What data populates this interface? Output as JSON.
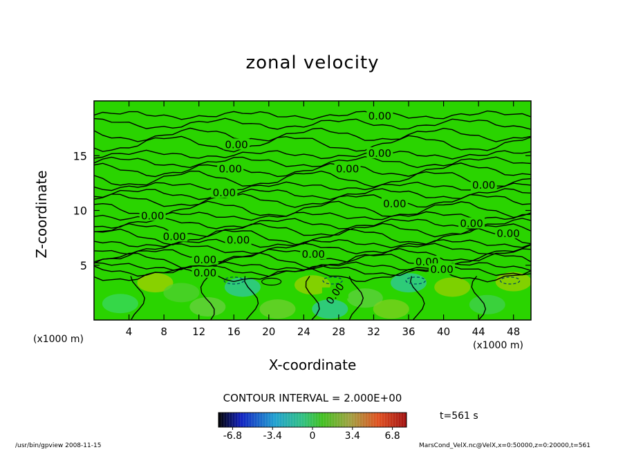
{
  "chart_data": {
    "type": "contour",
    "title": "zonal velocity",
    "xlabel": "X-coordinate",
    "ylabel": "Z-coordinate",
    "x_unit_left": "(x1000 m)",
    "x_unit_right": "(x1000 m)",
    "xlim": [
      0,
      50
    ],
    "ylim": [
      0,
      20
    ],
    "x_ticks": [
      "4",
      "8",
      "12",
      "16",
      "20",
      "24",
      "28",
      "32",
      "36",
      "40",
      "44",
      "48"
    ],
    "x_tick_values": [
      4,
      8,
      12,
      16,
      20,
      24,
      28,
      32,
      36,
      40,
      44,
      48
    ],
    "y_ticks": [
      "5",
      "10",
      "15"
    ],
    "y_tick_values": [
      5,
      10,
      15
    ],
    "contour_label": "0.00",
    "contour_label_positions": [
      [
        32.7,
        18.6
      ],
      [
        16.3,
        16.0
      ],
      [
        32.7,
        15.2
      ],
      [
        15.6,
        13.8
      ],
      [
        29.0,
        13.8
      ],
      [
        44.6,
        12.3
      ],
      [
        14.9,
        11.6
      ],
      [
        34.4,
        10.6
      ],
      [
        6.7,
        9.5
      ],
      [
        43.2,
        8.8
      ],
      [
        47.4,
        7.9
      ],
      [
        9.2,
        7.6
      ],
      [
        16.5,
        7.3
      ],
      [
        25.1,
        6.0
      ],
      [
        12.7,
        5.5
      ],
      [
        38.1,
        5.3
      ],
      [
        39.8,
        4.6
      ],
      [
        12.7,
        4.3
      ],
      [
        27.6,
        2.4
      ]
    ],
    "background_color": "#2ad400",
    "contour_interval": "CONTOUR INTERVAL = 2.000E+00",
    "colorbar": {
      "ticks": [
        "-6.8",
        "-3.4",
        "0",
        "3.4",
        "6.8"
      ],
      "tick_values": [
        -6.8,
        -3.4,
        0,
        3.4,
        6.8
      ],
      "range": [
        -8,
        8
      ]
    },
    "time": "t=561 s"
  },
  "footer": {
    "left": "/usr/bin/gpview   2008-11-15",
    "right": "MarsCond_VelX.nc@VelX,x=0:50000,z=0:20000,t=561"
  }
}
